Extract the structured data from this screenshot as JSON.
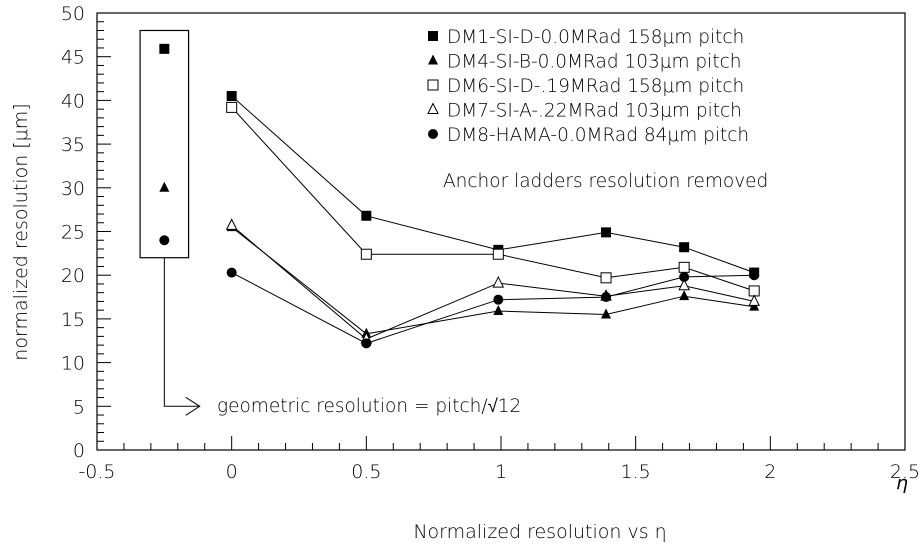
{
  "chart_data": {
    "type": "scatter",
    "xlabel": "η",
    "ylabel": "normalized resolution [μm]",
    "caption": "Normalized resolution vs η",
    "xlim": [
      -0.5,
      2.5
    ],
    "ylim": [
      0,
      50
    ],
    "x_ticks": [
      -0.5,
      0,
      0.5,
      1,
      1.5,
      2,
      2.5
    ],
    "x_tick_labels": [
      "-0.5",
      "0",
      "0.5",
      "1",
      "1.5",
      "2",
      "2.5"
    ],
    "y_ticks": [
      0,
      5,
      10,
      15,
      20,
      25,
      30,
      35,
      40,
      45,
      50
    ],
    "y_tick_labels": [
      "0",
      "5",
      "10",
      "15",
      "20",
      "25",
      "30",
      "35",
      "40",
      "45",
      "50"
    ],
    "grid": false,
    "legend_position": "top-right",
    "series": [
      {
        "name": "DM1-SI-D-0.0MRad 158μm pitch",
        "marker": "filled-square",
        "x": [
          0,
          0.5,
          0.99,
          1.39,
          1.68,
          1.94
        ],
        "y": [
          40.5,
          26.8,
          22.9,
          24.9,
          23.2,
          20.3
        ]
      },
      {
        "name": "DM4-SI-B-0.0MRad 103μm pitch",
        "marker": "filled-triangle",
        "x": [
          0,
          0.5,
          0.99,
          1.39,
          1.68,
          1.94
        ],
        "y": [
          25.5,
          13.3,
          15.9,
          15.5,
          17.6,
          16.4
        ]
      },
      {
        "name": "DM6-SI-D-.19MRad 158μm pitch",
        "marker": "open-square",
        "x": [
          0,
          0.5,
          0.99,
          1.39,
          1.68,
          1.94
        ],
        "y": [
          39.2,
          22.4,
          22.4,
          19.7,
          20.9,
          18.2
        ]
      },
      {
        "name": "DM7-SI-A-.22MRad 103μm pitch",
        "marker": "open-triangle",
        "x": [
          0,
          0.5,
          0.99,
          1.39,
          1.68,
          1.94
        ],
        "y": [
          25.7,
          12.7,
          19.1,
          17.6,
          18.8,
          17.0
        ]
      },
      {
        "name": "DM8-HAMA-0.0MRad 84μm pitch",
        "marker": "filled-circle",
        "x": [
          0,
          0.5,
          0.99,
          1.39,
          1.68,
          1.94
        ],
        "y": [
          20.3,
          12.2,
          17.2,
          17.5,
          19.8,
          20.0
        ]
      }
    ],
    "geometric_points": [
      {
        "marker": "filled-square",
        "x": -0.25,
        "y": 45.9
      },
      {
        "marker": "filled-triangle",
        "x": -0.25,
        "y": 30.0
      },
      {
        "marker": "filled-circle",
        "x": -0.25,
        "y": 24.0
      }
    ],
    "annotations": {
      "anchor_note": "Anchor ladders resolution removed",
      "geometric_note": "geometric resolution = pitch/√12"
    }
  }
}
